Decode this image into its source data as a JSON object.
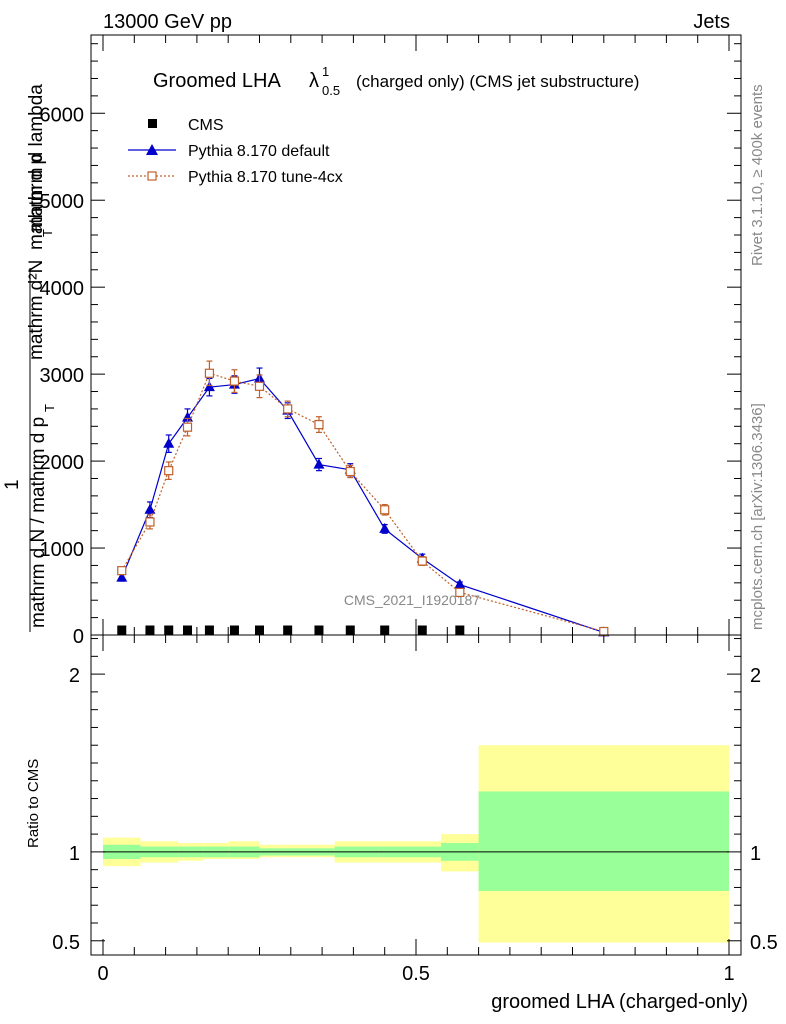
{
  "header": {
    "left": "13000 GeV pp",
    "right": "Jets"
  },
  "side_labels": {
    "rivet": "Rivet 3.1.10, ≥ 400k events",
    "mcplots": "mcplots.cern.ch [arXiv:1306.3436]"
  },
  "chart_data": [
    {
      "type": "line",
      "title_main": "Groomed LHA",
      "title_symbol": "λ",
      "title_sup": "1",
      "title_sub": "0.5",
      "title_rest": "(charged only) (CMS jet substructure)",
      "watermark": "CMS_2021_I1920187",
      "ylabel_top": "1",
      "ylabel_num": "mathrm d²N",
      "ylabel_num_b": "mathrm d p",
      "ylabel_num_sub": "T",
      "ylabel_num_c": " mathrm d lambda",
      "ylabel_den": "mathrm d N / mathrm d p",
      "ylabel_den_sub": "T",
      "xlim": [
        0,
        1
      ],
      "ylim": [
        0,
        6900
      ],
      "yticks": [
        0,
        1000,
        2000,
        3000,
        4000,
        5000,
        6000
      ],
      "ytick_labels": [
        "0",
        "1000",
        "2000",
        "3000",
        "4000",
        "5000",
        "6000"
      ],
      "legend_position": "top-left",
      "series": [
        {
          "name": "CMS",
          "color": "#000000",
          "marker": "square",
          "x": [
            0.03,
            0.075,
            0.105,
            0.135,
            0.17,
            0.21,
            0.25,
            0.295,
            0.345,
            0.395,
            0.45,
            0.51,
            0.57
          ],
          "y": [
            0,
            0,
            0,
            0,
            0,
            0,
            0,
            0,
            0,
            0,
            0,
            0,
            0
          ]
        },
        {
          "name": "Pythia 8.170 default",
          "color": "#0000cc",
          "marker": "triangle",
          "line": "solid",
          "x": [
            0.03,
            0.075,
            0.105,
            0.135,
            0.17,
            0.21,
            0.25,
            0.295,
            0.345,
            0.395,
            0.45,
            0.51,
            0.57,
            0.8
          ],
          "y": [
            660,
            1440,
            2200,
            2500,
            2850,
            2880,
            2950,
            2580,
            1960,
            1900,
            1220,
            880,
            580,
            30
          ],
          "err": [
            40,
            90,
            100,
            100,
            100,
            100,
            120,
            90,
            70,
            70,
            50,
            50,
            30,
            10
          ]
        },
        {
          "name": "Pythia 8.170 tune-4cx",
          "color": "#c0602a",
          "marker": "open-square",
          "line": "dotted",
          "x": [
            0.03,
            0.075,
            0.105,
            0.135,
            0.17,
            0.21,
            0.25,
            0.295,
            0.345,
            0.395,
            0.45,
            0.51,
            0.57,
            0.8
          ],
          "y": [
            740,
            1300,
            1890,
            2390,
            3010,
            2920,
            2860,
            2600,
            2420,
            1880,
            1440,
            850,
            490,
            40
          ],
          "err": [
            40,
            80,
            100,
            100,
            140,
            130,
            130,
            90,
            90,
            70,
            60,
            50,
            30,
            10
          ]
        }
      ]
    },
    {
      "type": "area",
      "ylabel": "Ratio to CMS",
      "xlabel": "groomed LHA (charged-only)",
      "xlim": [
        0,
        1
      ],
      "ylim": [
        0.42,
        2.22
      ],
      "yticks": [
        0.5,
        1,
        2
      ],
      "ytick_labels": [
        "0.5",
        "1",
        "2"
      ],
      "xticks": [
        0,
        0.5,
        1
      ],
      "xtick_labels": [
        "0",
        "0.5",
        "1"
      ],
      "bins": [
        0,
        0.06,
        0.12,
        0.16,
        0.2,
        0.25,
        0.29,
        0.37,
        0.44,
        0.54,
        0.6,
        1.0
      ],
      "stat_band_lo": [
        0.96,
        0.97,
        0.97,
        0.97,
        0.97,
        0.98,
        0.98,
        0.97,
        0.97,
        0.95,
        0.78
      ],
      "stat_band_hi": [
        1.04,
        1.03,
        1.03,
        1.03,
        1.03,
        1.02,
        1.02,
        1.03,
        1.03,
        1.05,
        1.34
      ],
      "total_band_lo": [
        0.92,
        0.94,
        0.95,
        0.96,
        0.96,
        0.97,
        0.97,
        0.94,
        0.94,
        0.89,
        0.49
      ],
      "total_band_hi": [
        1.08,
        1.06,
        1.05,
        1.05,
        1.06,
        1.04,
        1.04,
        1.06,
        1.06,
        1.1,
        1.6
      ],
      "stat_color": "#99ff99",
      "total_color": "#ffff99"
    }
  ]
}
